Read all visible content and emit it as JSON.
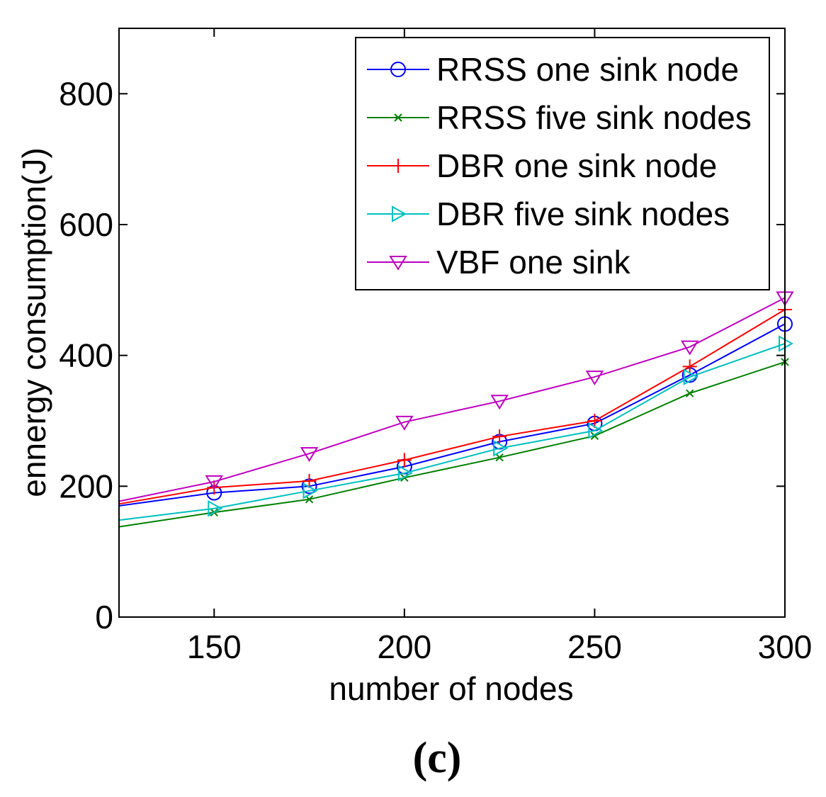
{
  "chart_data": {
    "type": "line",
    "title": "",
    "xlabel": "number of nodes",
    "ylabel": "ennergy consumption(J)",
    "caption": "(c)",
    "xlim": [
      125,
      300
    ],
    "ylim": [
      0,
      900
    ],
    "xticks": [
      150,
      200,
      250,
      300
    ],
    "yticks": [
      0,
      200,
      400,
      600,
      800
    ],
    "grid": false,
    "legend_position": "top-right",
    "x": [
      125,
      150,
      175,
      200,
      225,
      250,
      275,
      300
    ],
    "series": [
      {
        "name": "RRSS one sink node",
        "color": "#0000ff",
        "marker": "circle",
        "values": [
          170,
          190,
          200,
          230,
          268,
          296,
          370,
          448
        ]
      },
      {
        "name": "RRSS five sink nodes",
        "color": "#008000",
        "marker": "x",
        "values": [
          138,
          160,
          180,
          213,
          244,
          277,
          342,
          390
        ]
      },
      {
        "name": "DBR one sink node",
        "color": "#ff0000",
        "marker": "plus",
        "values": [
          173,
          198,
          208,
          240,
          276,
          300,
          383,
          470
        ]
      },
      {
        "name": "DBR five sink nodes",
        "color": "#00bfbf",
        "marker": "triangle-right",
        "values": [
          148,
          166,
          193,
          220,
          258,
          285,
          367,
          418
        ]
      },
      {
        "name": "VBF one sink",
        "color": "#bf00bf",
        "marker": "triangle-down",
        "values": [
          177,
          207,
          250,
          298,
          330,
          367,
          413,
          488
        ]
      }
    ]
  }
}
